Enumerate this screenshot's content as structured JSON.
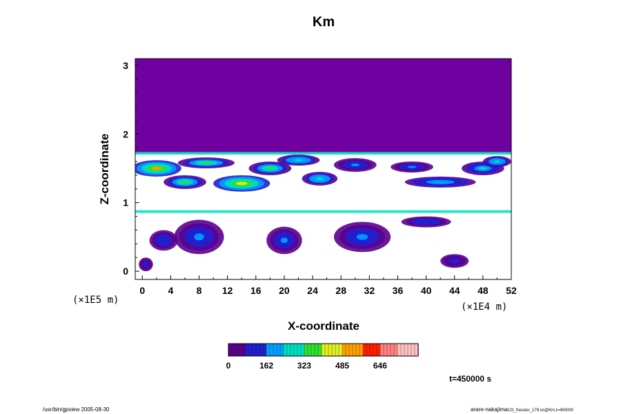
{
  "chart_data": {
    "type": "heatmap",
    "title": "Km",
    "xlabel": "X-coordinate",
    "ylabel": "Z-coordinate",
    "x_ticks": [
      "0",
      "4",
      "8",
      "12",
      "16",
      "20",
      "24",
      "28",
      "32",
      "36",
      "40",
      "44",
      "48",
      "52"
    ],
    "y_ticks": [
      "0",
      "1",
      "2",
      "3"
    ],
    "x_unit": "(×1E4 m)",
    "y_unit": "(×1E5 m)",
    "xlim": [
      -1,
      52
    ],
    "ylim": [
      -0.12,
      3.1
    ],
    "colorbar": {
      "min": 0,
      "max": 808,
      "tick_labels": [
        "0",
        "162",
        "323",
        "485",
        "646"
      ],
      "tick_values": [
        0,
        162,
        323,
        485,
        646
      ],
      "colors": [
        "#5a0090",
        "#2020d0",
        "#00a0ff",
        "#00e0c0",
        "#30e030",
        "#e0f020",
        "#ffa000",
        "#ff2000",
        "#ff8080",
        "#ffc0c0"
      ]
    },
    "background_value": 0,
    "background_color": "#7000a0",
    "upper_uniform_layer": {
      "z_from": 1.72,
      "z_to": 3.1,
      "value": 0
    },
    "blobs": [
      {
        "x": 2,
        "z": 1.5,
        "rx": 3.5,
        "rz": 0.12,
        "v": 500
      },
      {
        "x": 6,
        "z": 1.3,
        "rx": 3.0,
        "rz": 0.1,
        "v": 380
      },
      {
        "x": 9,
        "z": 1.58,
        "rx": 4.0,
        "rz": 0.08,
        "v": 330
      },
      {
        "x": 14,
        "z": 1.28,
        "rx": 4.0,
        "rz": 0.12,
        "v": 420
      },
      {
        "x": 18,
        "z": 1.5,
        "rx": 3.0,
        "rz": 0.1,
        "v": 360
      },
      {
        "x": 22,
        "z": 1.62,
        "rx": 3.0,
        "rz": 0.08,
        "v": 300
      },
      {
        "x": 25,
        "z": 1.35,
        "rx": 2.5,
        "rz": 0.1,
        "v": 280
      },
      {
        "x": 30,
        "z": 1.55,
        "rx": 3.0,
        "rz": 0.1,
        "v": 200
      },
      {
        "x": 38,
        "z": 1.52,
        "rx": 3.0,
        "rz": 0.08,
        "v": 180
      },
      {
        "x": 42,
        "z": 1.3,
        "rx": 5.0,
        "rz": 0.08,
        "v": 240
      },
      {
        "x": 48,
        "z": 1.5,
        "rx": 3.0,
        "rz": 0.1,
        "v": 260
      },
      {
        "x": 50,
        "z": 1.6,
        "rx": 2.0,
        "rz": 0.08,
        "v": 300
      },
      {
        "x": 8,
        "z": 0.5,
        "rx": 3.5,
        "rz": 0.25,
        "v": 200
      },
      {
        "x": 3,
        "z": 0.45,
        "rx": 2.0,
        "rz": 0.15,
        "v": 140
      },
      {
        "x": 20,
        "z": 0.45,
        "rx": 2.5,
        "rz": 0.2,
        "v": 180
      },
      {
        "x": 31,
        "z": 0.5,
        "rx": 4.0,
        "rz": 0.22,
        "v": 190
      },
      {
        "x": 40,
        "z": 0.72,
        "rx": 3.5,
        "rz": 0.08,
        "v": 160
      },
      {
        "x": 44,
        "z": 0.15,
        "rx": 2.0,
        "rz": 0.1,
        "v": 130
      },
      {
        "x": 0.5,
        "z": 0.1,
        "rx": 1.0,
        "rz": 0.1,
        "v": 120
      }
    ],
    "bands": [
      {
        "z": 1.72,
        "value": 300
      },
      {
        "z": 0.87,
        "value": 260
      }
    ]
  },
  "footer": {
    "left": "/usr/bin/gpview 2005-08-30",
    "right": "arare-nakajima",
    "right_small": "CO_Kessler_179.nc@Km,t=450000"
  },
  "time_label": "t=450000 s"
}
